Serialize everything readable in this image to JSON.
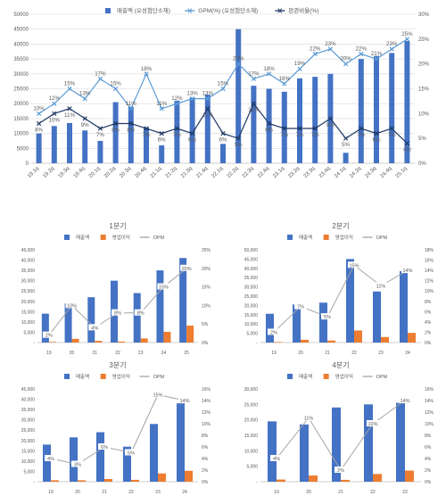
{
  "chart_data": [
    {
      "type": "bar",
      "title": "",
      "legend": [
        "매출액 (오성첨단소재)",
        "GPM(%) (오성첨단소재)",
        "판관비율(%)"
      ],
      "legend_position": "top",
      "categories": [
        "19.1q",
        "19.2q",
        "19.3q",
        "19.4q",
        "20.1q",
        "20.2q",
        "20.3q",
        "20.4q",
        "21.1q",
        "21.2q",
        "21.3q",
        "21.4q",
        "22.1q",
        "22.2q",
        "22.3q",
        "22.4q",
        "23.1q",
        "23.2q",
        "23.3q",
        "23.4q",
        "24.1q",
        "24.2q",
        "24.3q",
        "24.4q",
        "25.1q"
      ],
      "series": [
        {
          "name": "매출액 (오성첨단소재)",
          "type": "bar",
          "axis": "left",
          "color": "#4472C4",
          "values": [
            10000,
            12500,
            13500,
            11000,
            7500,
            20500,
            19000,
            12000,
            6000,
            21000,
            22000,
            23000,
            6500,
            45000,
            26000,
            25000,
            24000,
            28500,
            29000,
            30000,
            3500,
            35000,
            36000,
            37000,
            41000
          ]
        },
        {
          "name": "GPM(%) (오성첨단소재)",
          "type": "line",
          "axis": "right",
          "color": "#5B9BD5",
          "values": [
            10,
            12,
            15,
            13,
            17,
            15,
            11,
            18,
            11,
            12,
            13,
            13,
            15,
            20,
            17,
            18,
            16,
            19,
            22,
            23,
            20,
            22,
            21,
            23,
            25
          ]
        },
        {
          "name": "판관비율(%)",
          "type": "line",
          "axis": "right",
          "color": "#1F3864",
          "values": [
            8,
            10,
            11,
            9,
            7,
            8,
            8,
            7,
            6,
            7,
            6,
            11,
            6,
            5,
            12,
            8,
            7,
            7,
            7,
            9,
            5,
            7,
            6,
            7,
            4
          ]
        }
      ],
      "gpm_labels": [
        "10%",
        "12%",
        "15%",
        "13%",
        "17%",
        "15%",
        "11%",
        "18%",
        "11%",
        "12%",
        "13%",
        "13%",
        "15%",
        "20%",
        "17%",
        "18%",
        "16%",
        "19%",
        "22%",
        "23%",
        "20%",
        "22%",
        "21%",
        "23%",
        "25%"
      ],
      "sga_labels": [
        "8%",
        "10%",
        "11%",
        "9%",
        "7%",
        "8%",
        "8%",
        "7%",
        "6%",
        "7%",
        "6%",
        "11%",
        "6%",
        "5%",
        "12%",
        "8%",
        "7%",
        "7%",
        "7%",
        "9%",
        "5%",
        "7%",
        "6%",
        "7%",
        "4%"
      ],
      "ylim": [
        0,
        50000
      ],
      "y_ticks": [
        "0",
        "5000",
        "10000",
        "15000",
        "20000",
        "25000",
        "30000",
        "35000",
        "40000",
        "45000",
        "50000"
      ],
      "y2lim": [
        0,
        30
      ],
      "y2_ticks": [
        "0%",
        "5%",
        "10%",
        "15%",
        "20%",
        "25%",
        "30%"
      ],
      "grid": true
    },
    {
      "type": "bar",
      "title": "1분기",
      "legend": [
        "매출액",
        "영업이익",
        "OPM"
      ],
      "categories": [
        "19",
        "20",
        "21",
        "22",
        "23",
        "24",
        "25"
      ],
      "series": [
        {
          "name": "매출액",
          "type": "bar",
          "axis": "left",
          "color": "#4472C4",
          "values": [
            14000,
            19000,
            22000,
            30000,
            24000,
            35000,
            41000
          ]
        },
        {
          "name": "영업이익",
          "type": "bar",
          "axis": "left",
          "color": "#ED7D31",
          "values": [
            300,
            1800,
            800,
            500,
            2000,
            5200,
            8200
          ]
        },
        {
          "name": "OPM",
          "type": "line",
          "axis": "right",
          "color": "#A5A5A5",
          "values": [
            2,
            10,
            4,
            8,
            8,
            15,
            20
          ]
        }
      ],
      "opm_labels": [
        "2%",
        "10%",
        "4%",
        "8%",
        "8%",
        "15%",
        "20%"
      ],
      "ylim": [
        0,
        45000
      ],
      "y_ticks": [
        "-",
        "5,000",
        "10,000",
        "15,000",
        "20,000",
        "25,000",
        "30,000",
        "35,000",
        "40,000",
        "45,000"
      ],
      "y2lim": [
        0,
        25
      ],
      "y2_ticks": [
        "0%",
        "5%",
        "10%",
        "15%",
        "20%",
        "25%"
      ]
    },
    {
      "type": "bar",
      "title": "2분기",
      "legend": [
        "매출액",
        "영업이익",
        "OPM"
      ],
      "categories": [
        "19",
        "20",
        "21",
        "22",
        "23",
        "24"
      ],
      "series": [
        {
          "name": "매출액",
          "type": "bar",
          "axis": "left",
          "color": "#4472C4",
          "values": [
            15500,
            20500,
            21500,
            45000,
            27500,
            38500
          ]
        },
        {
          "name": "영업이익",
          "type": "bar",
          "axis": "left",
          "color": "#ED7D31",
          "values": [
            300,
            1500,
            1100,
            6500,
            3000,
            5200
          ]
        },
        {
          "name": "OPM",
          "type": "line",
          "axis": "right",
          "color": "#A5A5A5",
          "values": [
            2,
            7,
            5,
            15,
            11,
            14
          ]
        }
      ],
      "opm_labels": [
        "2%",
        "7%",
        "5%",
        "15%",
        "11%",
        "14%"
      ],
      "ylim": [
        0,
        50000
      ],
      "y_ticks": [
        "-",
        "5,000",
        "10,000",
        "15,000",
        "20,000",
        "25,000",
        "30,000",
        "35,000",
        "40,000",
        "45,000",
        "50,000"
      ],
      "y2lim": [
        0,
        18
      ],
      "y2_ticks": [
        "0%",
        "2%",
        "4%",
        "6%",
        "8%",
        "10%",
        "12%",
        "14%",
        "16%",
        "18%"
      ]
    },
    {
      "type": "bar",
      "title": "3분기",
      "legend": [
        "매출액",
        "영업이익",
        "OPM"
      ],
      "categories": [
        "19",
        "20",
        "21",
        "22",
        "23",
        "24"
      ],
      "series": [
        {
          "name": "매출액",
          "type": "bar",
          "axis": "left",
          "color": "#4472C4",
          "values": [
            18000,
            21500,
            24000,
            17000,
            28000,
            38000
          ]
        },
        {
          "name": "영업이익",
          "type": "bar",
          "axis": "left",
          "color": "#ED7D31",
          "values": [
            700,
            700,
            1300,
            900,
            4000,
            5300
          ]
        },
        {
          "name": "OPM",
          "type": "line",
          "axis": "right",
          "color": "#A5A5A5",
          "values": [
            4,
            3,
            6,
            5,
            15,
            14
          ]
        }
      ],
      "opm_labels": [
        "4%",
        "3%",
        "6%",
        "5%",
        "15%",
        "14%"
      ],
      "ylim": [
        0,
        45000
      ],
      "y_ticks": [
        "-",
        "5,000",
        "10,000",
        "15,000",
        "20,000",
        "25,000",
        "30,000",
        "35,000",
        "40,000",
        "45,000"
      ],
      "y2lim": [
        0,
        16
      ],
      "y2_ticks": [
        "0%",
        "2%",
        "4%",
        "6%",
        "8%",
        "10%",
        "12%",
        "14%",
        "16%"
      ]
    },
    {
      "type": "bar",
      "title": "4분기",
      "legend": [
        "매출액",
        "영업이익",
        "OPM"
      ],
      "categories": [
        "19",
        "20",
        "21",
        "22",
        "23"
      ],
      "series": [
        {
          "name": "매출액",
          "type": "bar",
          "axis": "left",
          "color": "#4472C4",
          "values": [
            19500,
            18500,
            24000,
            25000,
            25500
          ]
        },
        {
          "name": "영업이익",
          "type": "bar",
          "axis": "left",
          "color": "#ED7D31",
          "values": [
            700,
            2000,
            600,
            2500,
            3600
          ]
        },
        {
          "name": "OPM",
          "type": "line",
          "axis": "right",
          "color": "#A5A5A5",
          "values": [
            4,
            11,
            2,
            10,
            14
          ]
        }
      ],
      "opm_labels": [
        "4%",
        "11%",
        "2%",
        "10%",
        "14%"
      ],
      "ylim": [
        0,
        30000
      ],
      "y_ticks": [
        "-",
        "5,000",
        "10,000",
        "15,000",
        "20,000",
        "25,000",
        "30,000"
      ],
      "y2lim": [
        0,
        16
      ],
      "y2_ticks": [
        "0%",
        "2%",
        "4%",
        "6%",
        "8%",
        "10%",
        "12%",
        "14%",
        "16%"
      ]
    }
  ]
}
